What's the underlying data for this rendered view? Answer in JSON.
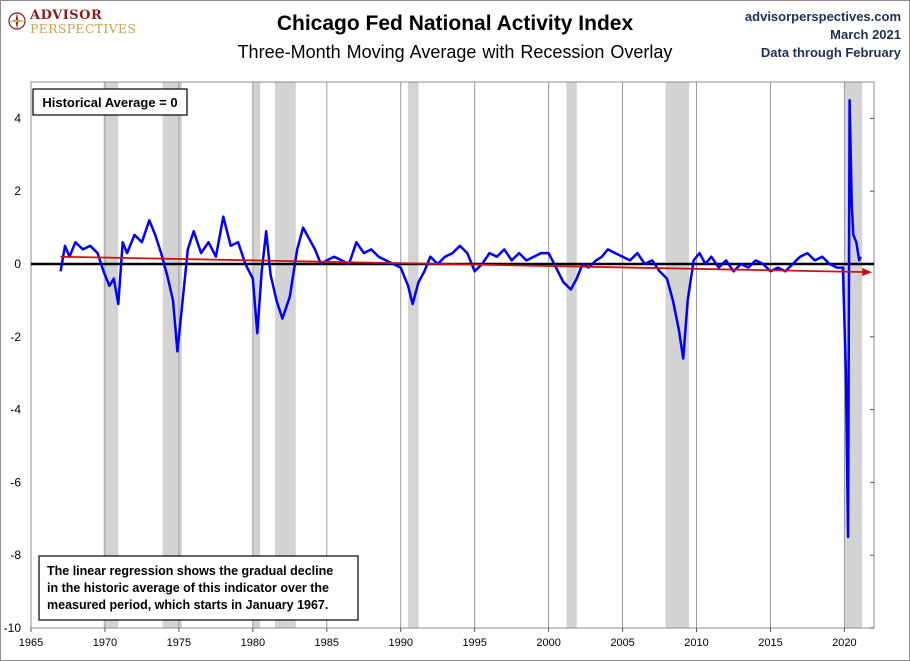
{
  "header": {
    "logo_top": "ADVISOR",
    "logo_bottom": "PERSPECTIVES",
    "site": "advisorperspectives.com",
    "date": "March 2021",
    "data_through": "Data through February"
  },
  "colors": {
    "series": "#0000ff",
    "trend": "#cc1111",
    "zero_line": "#000000",
    "recession": "#d3d3d3",
    "negative_tick": "#cc0000"
  },
  "chart_data": {
    "type": "line",
    "title": "Chicago Fed National Activity Index",
    "subtitle": "Three-Month Moving Average with Recession Overlay",
    "x_range": [
      1965,
      2022
    ],
    "ylim": [
      -10,
      5
    ],
    "x_ticks": [
      1965,
      1970,
      1975,
      1980,
      1985,
      1990,
      1995,
      2000,
      2005,
      2010,
      2015,
      2020
    ],
    "y_ticks": [
      4,
      2,
      0,
      -2,
      -4,
      -6,
      -8,
      -10
    ],
    "grid": "vertical",
    "reference_line": {
      "label": "Historical Average = 0",
      "y": 0
    },
    "annotation": [
      "The linear regression shows the gradual decline",
      "in the historic average of this indicator over the",
      "measured period, which starts in January 1967."
    ],
    "recessions": [
      [
        1969.9,
        1970.9
      ],
      [
        1973.9,
        1975.2
      ],
      [
        1980.0,
        1980.5
      ],
      [
        1981.5,
        1982.9
      ],
      [
        1990.5,
        1991.2
      ],
      [
        2001.2,
        2001.9
      ],
      [
        2007.9,
        2009.5
      ],
      [
        2020.0,
        2021.2
      ]
    ],
    "trend": {
      "x": [
        1967.0,
        2021.2
      ],
      "y": [
        0.2,
        -0.22
      ]
    },
    "series": [
      {
        "x": [
          1967.0,
          1967.3,
          1967.6,
          1968.0,
          1968.5,
          1969.0,
          1969.5,
          1969.9,
          1970.3,
          1970.6,
          1970.9,
          1971.2,
          1971.5,
          1972.0,
          1972.5,
          1973.0,
          1973.4,
          1973.8,
          1974.2,
          1974.6,
          1974.9,
          1975.2,
          1975.6,
          1976.0,
          1976.5,
          1977.0,
          1977.5,
          1978.0,
          1978.5,
          1979.0,
          1979.5,
          1980.0,
          1980.3,
          1980.6,
          1980.9,
          1981.2,
          1981.6,
          1982.0,
          1982.5,
          1983.0,
          1983.4,
          1983.8,
          1984.2,
          1984.6,
          1985.0,
          1985.5,
          1986.0,
          1986.5,
          1987.0,
          1987.5,
          1988.0,
          1988.5,
          1989.0,
          1989.5,
          1990.0,
          1990.5,
          1990.8,
          1991.2,
          1991.6,
          1992.0,
          1992.5,
          1993.0,
          1993.5,
          1994.0,
          1994.5,
          1995.0,
          1995.5,
          1996.0,
          1996.5,
          1997.0,
          1997.5,
          1998.0,
          1998.5,
          1999.0,
          1999.5,
          2000.0,
          2000.5,
          2001.0,
          2001.5,
          2001.9,
          2002.3,
          2002.7,
          2003.2,
          2003.6,
          2004.0,
          2004.5,
          2005.0,
          2005.5,
          2006.0,
          2006.5,
          2007.0,
          2007.5,
          2008.0,
          2008.4,
          2008.8,
          2009.1,
          2009.4,
          2009.8,
          2010.2,
          2010.6,
          2011.0,
          2011.5,
          2012.0,
          2012.5,
          2013.0,
          2013.5,
          2014.0,
          2014.5,
          2015.0,
          2015.5,
          2016.0,
          2016.5,
          2017.0,
          2017.5,
          2018.0,
          2018.5,
          2019.0,
          2019.5,
          2019.9,
          2020.1,
          2020.25,
          2020.35,
          2020.5,
          2020.6,
          2020.8,
          2021.0,
          2021.1
        ],
        "y": [
          -0.2,
          0.5,
          0.2,
          0.6,
          0.4,
          0.5,
          0.3,
          -0.2,
          -0.6,
          -0.4,
          -1.1,
          0.6,
          0.3,
          0.8,
          0.6,
          1.2,
          0.8,
          0.3,
          -0.3,
          -1.0,
          -2.4,
          -1.2,
          0.4,
          0.9,
          0.3,
          0.6,
          0.2,
          1.3,
          0.5,
          0.6,
          0.0,
          -0.4,
          -1.9,
          -0.2,
          0.9,
          -0.3,
          -1.0,
          -1.5,
          -0.9,
          0.4,
          1.0,
          0.7,
          0.4,
          0.0,
          0.1,
          0.2,
          0.1,
          0.0,
          0.6,
          0.3,
          0.4,
          0.2,
          0.1,
          0.0,
          -0.1,
          -0.6,
          -1.1,
          -0.5,
          -0.2,
          0.2,
          0.0,
          0.2,
          0.3,
          0.5,
          0.3,
          -0.2,
          0.0,
          0.3,
          0.2,
          0.4,
          0.1,
          0.3,
          0.1,
          0.2,
          0.3,
          0.3,
          -0.1,
          -0.5,
          -0.7,
          -0.4,
          0.0,
          -0.1,
          0.1,
          0.2,
          0.4,
          0.3,
          0.2,
          0.1,
          0.3,
          0.0,
          0.1,
          -0.2,
          -0.4,
          -1.0,
          -1.8,
          -2.6,
          -1.0,
          0.1,
          0.3,
          0.0,
          0.2,
          -0.1,
          0.1,
          -0.2,
          0.0,
          -0.1,
          0.1,
          0.0,
          -0.2,
          -0.1,
          -0.2,
          0.0,
          0.2,
          0.3,
          0.1,
          0.2,
          0.0,
          -0.1,
          -0.1,
          -3.0,
          -7.5,
          4.5,
          1.6,
          0.8,
          0.6,
          0.1,
          0.2
        ]
      }
    ]
  }
}
